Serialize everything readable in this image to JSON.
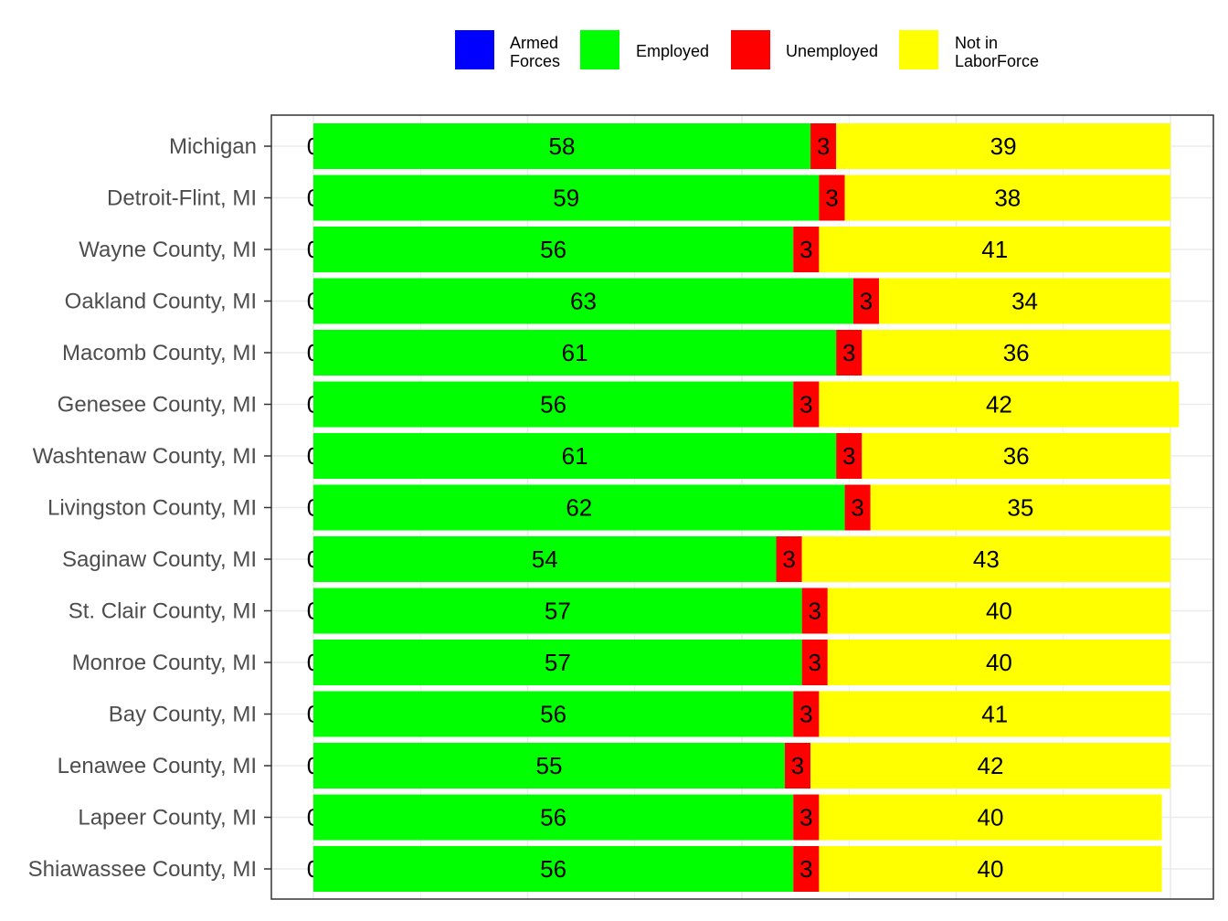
{
  "chart_data": {
    "type": "bar",
    "orientation": "horizontal",
    "stacked": true,
    "percent_of_total": true,
    "legend_position": "top",
    "grid": true,
    "xlim": [
      0,
      100
    ],
    "categories": [
      "Michigan",
      "Detroit-Flint, MI",
      "Wayne County, MI",
      "Oakland County, MI",
      "Macomb County, MI",
      "Genesee County, MI",
      "Washtenaw County, MI",
      "Livingston County, MI",
      "Saginaw County, MI",
      "St. Clair County, MI",
      "Monroe County, MI",
      "Bay County, MI",
      "Lenawee County, MI",
      "Lapeer County, MI",
      "Shiawassee County, MI"
    ],
    "series": [
      {
        "name": "Armed Forces",
        "legend_lines": [
          "Armed",
          "Forces"
        ],
        "color": "#0000ff",
        "values": [
          0,
          0,
          0,
          0,
          0,
          0,
          0,
          0,
          0,
          0,
          0,
          0,
          0,
          0,
          0
        ]
      },
      {
        "name": "Employed",
        "legend_lines": [
          "Employed"
        ],
        "color": "#00ff00",
        "values": [
          58,
          59,
          56,
          63,
          61,
          56,
          61,
          62,
          54,
          57,
          57,
          56,
          55,
          56,
          56
        ]
      },
      {
        "name": "Unemployed",
        "legend_lines": [
          "Unemployed"
        ],
        "color": "#ff0000",
        "values": [
          3,
          3,
          3,
          3,
          3,
          3,
          3,
          3,
          3,
          3,
          3,
          3,
          3,
          3,
          3
        ]
      },
      {
        "name": "Not in LaborForce",
        "legend_lines": [
          "Not in",
          "LaborForce"
        ],
        "color": "#ffff00",
        "values": [
          39,
          38,
          41,
          34,
          36,
          42,
          36,
          35,
          43,
          40,
          40,
          41,
          42,
          40,
          40
        ]
      }
    ]
  }
}
